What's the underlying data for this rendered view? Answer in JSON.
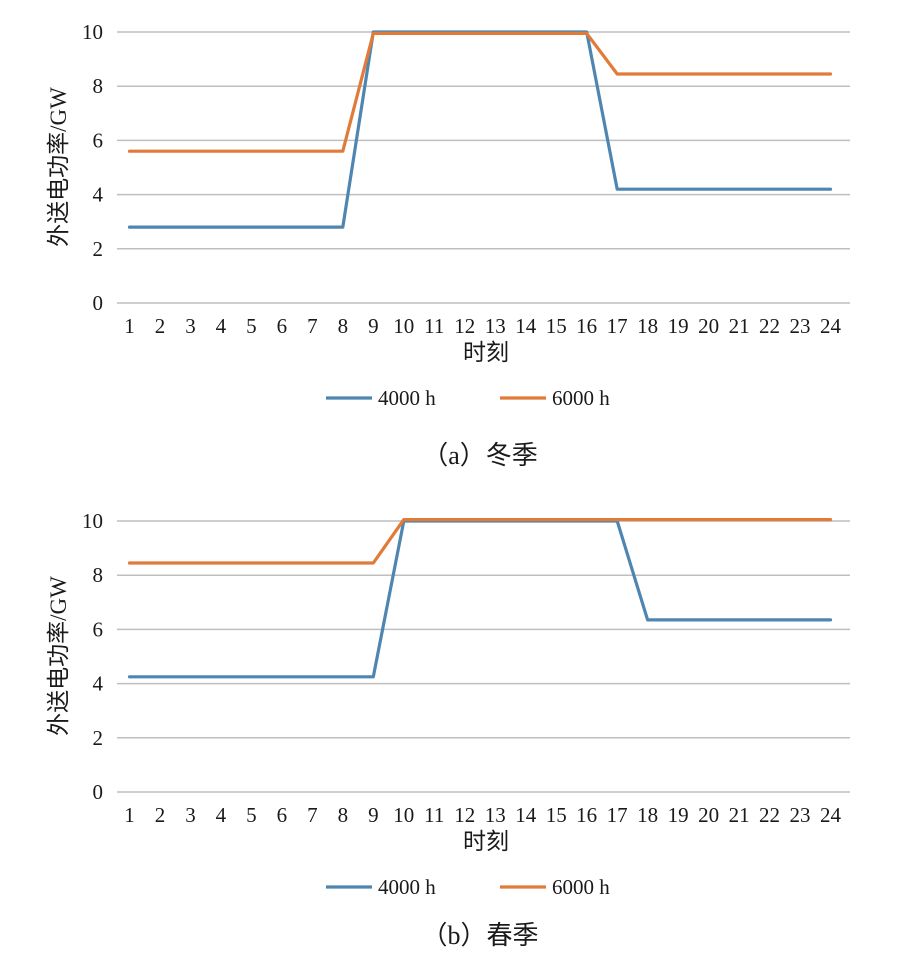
{
  "chart_data": [
    {
      "type": "line",
      "caption": "（a）冬季",
      "xlabel": "时刻",
      "ylabel": "外送电功率/GW",
      "ylim": [
        0,
        10
      ],
      "yticks": [
        "0",
        "2",
        "4",
        "6",
        "8",
        "10"
      ],
      "categories": [
        "1",
        "2",
        "3",
        "4",
        "5",
        "6",
        "7",
        "8",
        "9",
        "10",
        "11",
        "12",
        "13",
        "14",
        "15",
        "16",
        "17",
        "18",
        "19",
        "20",
        "21",
        "22",
        "23",
        "24"
      ],
      "grid": true,
      "legend": "bottom",
      "series": [
        {
          "name": "4000 h",
          "color": "#4e86b1",
          "values": [
            2.8,
            2.8,
            2.8,
            2.8,
            2.8,
            2.8,
            2.8,
            2.8,
            10,
            10,
            10,
            10,
            10,
            10,
            10,
            10,
            4.2,
            4.2,
            4.2,
            4.2,
            4.2,
            4.2,
            4.2,
            4.2
          ]
        },
        {
          "name": "6000 h",
          "color": "#e07b39",
          "values": [
            5.6,
            5.6,
            5.6,
            5.6,
            5.6,
            5.6,
            5.6,
            5.6,
            9.95,
            9.95,
            9.95,
            9.95,
            9.95,
            9.95,
            9.95,
            9.95,
            8.45,
            8.45,
            8.45,
            8.45,
            8.45,
            8.45,
            8.45,
            8.45
          ]
        }
      ]
    },
    {
      "type": "line",
      "caption": "（b）春季",
      "xlabel": "时刻",
      "ylabel": "外送电功率/GW",
      "ylim": [
        0,
        10
      ],
      "yticks": [
        "0",
        "2",
        "4",
        "6",
        "8",
        "10"
      ],
      "categories": [
        "1",
        "2",
        "3",
        "4",
        "5",
        "6",
        "7",
        "8",
        "9",
        "10",
        "11",
        "12",
        "13",
        "14",
        "15",
        "16",
        "17",
        "18",
        "19",
        "20",
        "21",
        "22",
        "23",
        "24"
      ],
      "grid": true,
      "legend": "bottom",
      "series": [
        {
          "name": "4000 h",
          "color": "#4e86b1",
          "values": [
            4.25,
            4.25,
            4.25,
            4.25,
            4.25,
            4.25,
            4.25,
            4.25,
            4.25,
            10,
            10,
            10,
            10,
            10,
            10,
            10,
            10,
            6.35,
            6.35,
            6.35,
            6.35,
            6.35,
            6.35,
            6.35
          ]
        },
        {
          "name": "6000 h",
          "color": "#e07b39",
          "values": [
            8.45,
            8.45,
            8.45,
            8.45,
            8.45,
            8.45,
            8.45,
            8.45,
            8.45,
            10.05,
            10.05,
            10.05,
            10.05,
            10.05,
            10.05,
            10.05,
            10.05,
            10.05,
            10.05,
            10.05,
            10.05,
            10.05,
            10.05,
            10.05
          ]
        }
      ]
    }
  ]
}
